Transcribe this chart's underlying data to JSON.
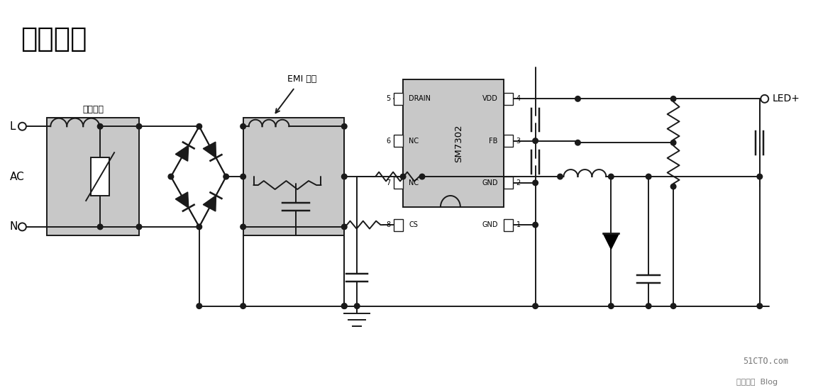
{
  "title": "典型应用",
  "title_fontsize": 30,
  "bg_color": "#ffffff",
  "line_color": "#1a1a1a",
  "fill_color": "#c8c8c8",
  "lw": 1.4,
  "watermark_line1": "51CTO.com",
  "watermark_line2": "技术博客  Blog"
}
